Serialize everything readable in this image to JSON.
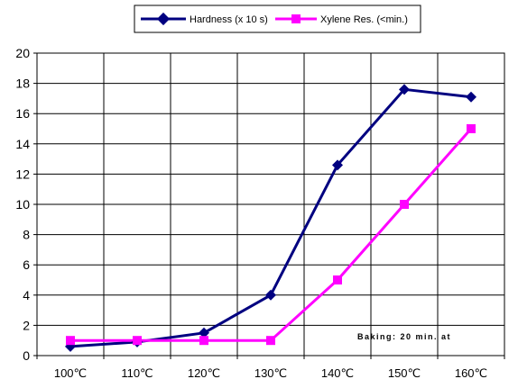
{
  "chart_data": {
    "type": "line",
    "title": "",
    "xlabel": "",
    "ylabel": "",
    "categories": [
      "100℃",
      "110℃",
      "120℃",
      "130℃",
      "140℃",
      "150℃",
      "160℃"
    ],
    "ylim": [
      0,
      20
    ],
    "yticks": [
      0,
      2,
      4,
      6,
      8,
      10,
      12,
      14,
      16,
      18,
      20
    ],
    "grid": true,
    "legend_position": "top-center",
    "series": [
      {
        "name": "Hardness (x 10 s)",
        "color": "#000080",
        "marker": "diamond",
        "values": [
          0.6,
          0.9,
          1.5,
          4.0,
          12.6,
          17.6,
          17.1
        ]
      },
      {
        "name": "Xylene Res. (<min.)",
        "color": "#FF00FF",
        "marker": "square",
        "values": [
          1.0,
          1.0,
          1.0,
          1.0,
          5.0,
          10.0,
          15.0
        ]
      }
    ],
    "annotations": [
      {
        "text": "Baking: 20 min. at",
        "category": "150℃",
        "y": 1.3
      }
    ]
  }
}
